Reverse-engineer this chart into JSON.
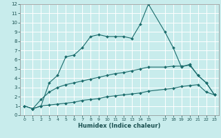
{
  "xlabel": "Humidex (Indice chaleur)",
  "bg_color": "#c8ecec",
  "grid_color": "#ffffff",
  "line_color": "#1a6b6b",
  "xlim": [
    -0.5,
    23.5
  ],
  "ylim": [
    0,
    12
  ],
  "xticks": [
    0,
    1,
    2,
    3,
    4,
    5,
    6,
    7,
    8,
    9,
    10,
    11,
    12,
    13,
    14,
    15,
    17,
    18,
    19,
    20,
    21,
    22,
    23
  ],
  "yticks": [
    0,
    1,
    2,
    3,
    4,
    5,
    6,
    7,
    8,
    9,
    10,
    11,
    12
  ],
  "line1_x": [
    0,
    1,
    2,
    3,
    4,
    5,
    6,
    7,
    8,
    9,
    10,
    11,
    12,
    13,
    14,
    15,
    17,
    18,
    19,
    20,
    21,
    22,
    23
  ],
  "line1_y": [
    1,
    0.7,
    1.0,
    1.1,
    1.2,
    1.3,
    1.4,
    1.6,
    1.7,
    1.8,
    2.0,
    2.1,
    2.2,
    2.3,
    2.4,
    2.6,
    2.8,
    2.9,
    3.1,
    3.2,
    3.3,
    2.5,
    2.2
  ],
  "line2_x": [
    1,
    2,
    3,
    4,
    5,
    6,
    7,
    8,
    9,
    10,
    11,
    12,
    13,
    14,
    15,
    17,
    18,
    19,
    20,
    21,
    22,
    23
  ],
  "line2_y": [
    0.7,
    1.0,
    3.5,
    4.3,
    6.3,
    6.5,
    7.3,
    8.5,
    8.7,
    8.5,
    8.5,
    8.5,
    8.3,
    9.8,
    12.0,
    9.0,
    7.3,
    5.2,
    5.5,
    4.3,
    3.5,
    2.2
  ],
  "line3_x": [
    0,
    1,
    2,
    3,
    4,
    5,
    6,
    7,
    8,
    9,
    10,
    11,
    12,
    13,
    14,
    15,
    17,
    18,
    19,
    20,
    21,
    22,
    23
  ],
  "line3_y": [
    1,
    0.7,
    1.7,
    2.5,
    3.0,
    3.3,
    3.5,
    3.7,
    3.9,
    4.1,
    4.3,
    4.5,
    4.6,
    4.8,
    5.0,
    5.2,
    5.2,
    5.3,
    5.3,
    5.4,
    4.3,
    3.5,
    2.2
  ]
}
